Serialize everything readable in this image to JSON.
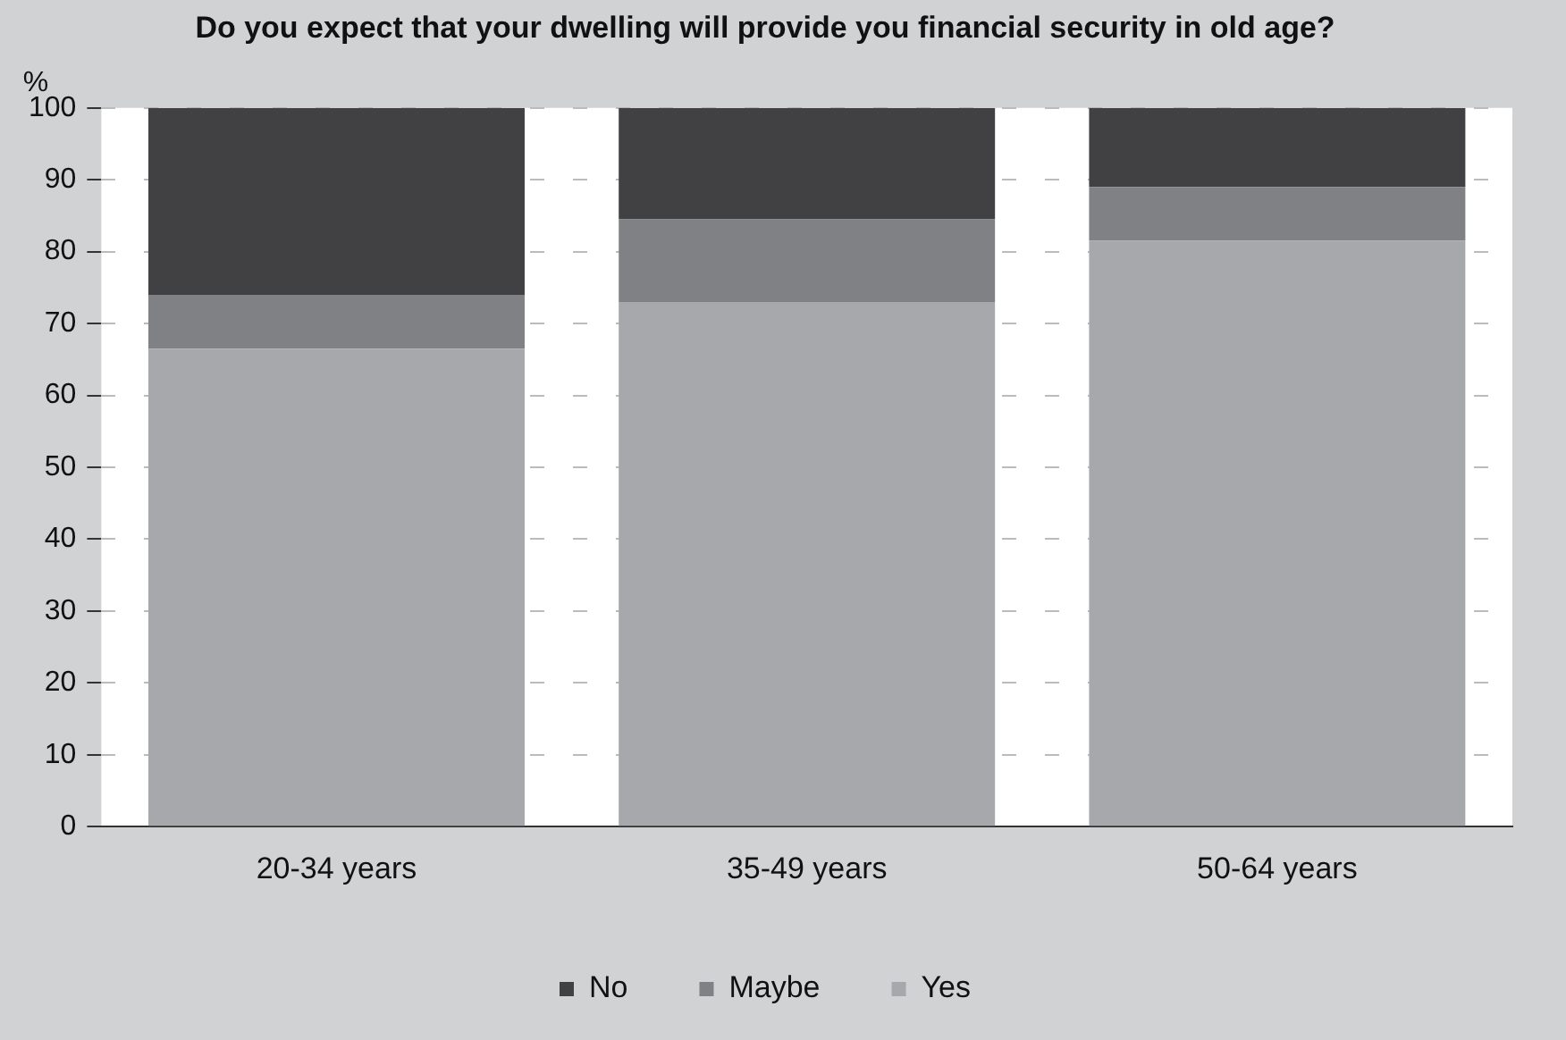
{
  "chart_data": {
    "type": "bar",
    "stacked": true,
    "title": "Do you expect that your dwelling will provide you financial security in old age?",
    "ylabel": "%",
    "categories": [
      "20-34 years",
      "35-49 years",
      "50-64 years"
    ],
    "series": [
      {
        "name": "Yes",
        "color": "#a7a8ab",
        "values": [
          66.5,
          73,
          81.5
        ]
      },
      {
        "name": "Maybe",
        "color": "#808184",
        "values": [
          7.5,
          11.5,
          7.5
        ]
      },
      {
        "name": "No",
        "color": "#414143",
        "values": [
          26,
          15.5,
          11
        ]
      }
    ],
    "ylim": [
      0,
      100
    ],
    "yticks": [
      0,
      10,
      20,
      30,
      40,
      50,
      60,
      70,
      80,
      90,
      100
    ],
    "grid": "y",
    "legend": "bottom"
  }
}
